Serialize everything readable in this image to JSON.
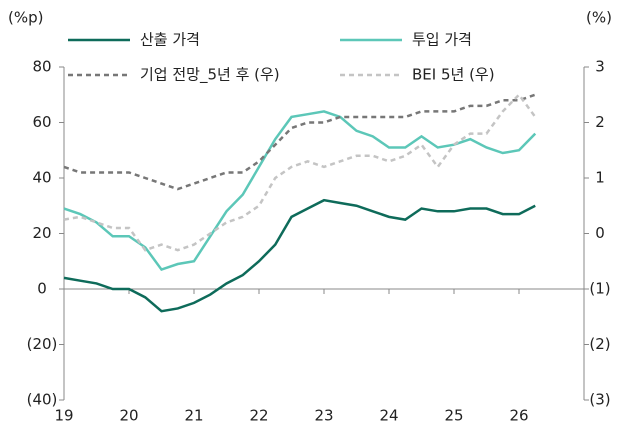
{
  "chart_data": {
    "type": "line",
    "y_label": "(%p)",
    "y2_label": "(%)",
    "x": [
      19,
      19.25,
      19.5,
      19.75,
      20,
      20.25,
      20.5,
      20.75,
      21,
      21.25,
      21.5,
      21.75,
      22,
      22.25,
      22.5,
      22.75,
      23,
      23.25,
      23.5,
      23.75,
      24,
      24.25,
      24.5,
      24.75,
      25,
      25.25,
      25.5,
      25.75,
      26,
      26.25
    ],
    "xlim": [
      19,
      27
    ],
    "xticks": [
      19,
      20,
      21,
      22,
      23,
      24,
      25,
      26
    ],
    "ylim": [
      -40,
      80
    ],
    "yticks": [
      {
        "value": -40,
        "label": "(40)"
      },
      {
        "value": -20,
        "label": "(20)"
      },
      0,
      20,
      40,
      60,
      80
    ],
    "y2lim": [
      -3,
      3
    ],
    "y2ticks": [
      {
        "value": -3,
        "label": "(3)"
      },
      {
        "value": -2,
        "label": "(2)"
      },
      {
        "value": -1,
        "label": "(1)"
      },
      0,
      1,
      2,
      3
    ],
    "series": [
      {
        "name": "산출 가격",
        "color": "#0e6b5a",
        "dash": false,
        "values": [
          4,
          3,
          2,
          0,
          0,
          -3,
          -8,
          -7,
          -5,
          -2,
          2,
          5,
          10,
          16,
          26,
          29,
          32,
          31,
          30,
          28,
          26,
          25,
          29,
          28,
          28,
          29,
          29,
          27,
          27,
          30
        ]
      },
      {
        "name": "투입 가격",
        "color": "#5cc7b8",
        "dash": false,
        "values": [
          29,
          27,
          24,
          19,
          19,
          15,
          7,
          9,
          10,
          19,
          28,
          34,
          44,
          54,
          62,
          63,
          64,
          62,
          57,
          55,
          51,
          51,
          55,
          51,
          52,
          54,
          51,
          49,
          50,
          56
        ]
      },
      {
        "name": "기업 전망_5년 후 (우)",
        "color": "#777777",
        "dash": true,
        "axis": "y2",
        "values": [
          1.2,
          1.1,
          1.1,
          1.1,
          1.1,
          1.0,
          0.9,
          0.8,
          0.9,
          1.0,
          1.1,
          1.1,
          1.3,
          1.6,
          1.9,
          2.0,
          2.0,
          2.1,
          2.1,
          2.1,
          2.1,
          2.1,
          2.2,
          2.2,
          2.2,
          2.3,
          2.3,
          2.4,
          2.4,
          2.5
        ]
      },
      {
        "name": "BEI 5년 (우)",
        "color": "#c4c4c4",
        "dash": true,
        "axis": "y2",
        "values": [
          0.25,
          0.3,
          0.2,
          0.1,
          0.1,
          -0.3,
          -0.2,
          -0.3,
          -0.2,
          0.0,
          0.2,
          0.3,
          0.5,
          1.0,
          1.2,
          1.3,
          1.2,
          1.3,
          1.4,
          1.4,
          1.3,
          1.4,
          1.6,
          1.2,
          1.6,
          1.8,
          1.8,
          2.2,
          2.5,
          2.1
        ]
      }
    ]
  }
}
